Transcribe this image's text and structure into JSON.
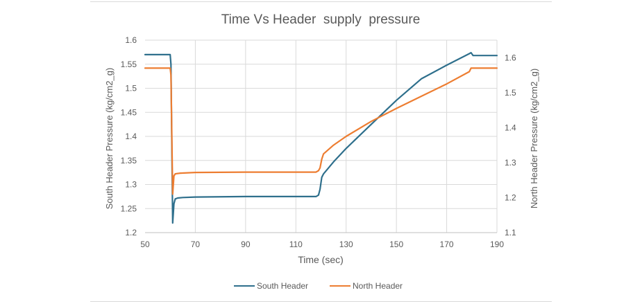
{
  "chart_data": {
    "type": "line",
    "title": "Time Vs Header  supply  pressure",
    "xlabel": "Time (sec)",
    "ylabel_left": "South Header Pressure (kg/cm2_g)",
    "ylabel_right": "North Header Pressure (kg/cm2_g)",
    "xlim": [
      50,
      190
    ],
    "x_ticks": [
      50,
      70,
      90,
      110,
      130,
      150,
      170,
      190
    ],
    "ylim_left": [
      1.2,
      1.6
    ],
    "y_ticks_left": [
      1.2,
      1.25,
      1.3,
      1.35,
      1.4,
      1.45,
      1.5,
      1.55,
      1.6
    ],
    "ylim_right": [
      1.1,
      1.65
    ],
    "y_ticks_right": [
      1.1,
      1.2,
      1.3,
      1.4,
      1.5,
      1.6
    ],
    "grid": true,
    "legend_position": "bottom",
    "series": [
      {
        "name": "South Header",
        "axis": "left",
        "color": "#2e6f8c",
        "points": [
          [
            50,
            1.57
          ],
          [
            60,
            1.57
          ],
          [
            60.3,
            1.55
          ],
          [
            61,
            1.22
          ],
          [
            61.5,
            1.26
          ],
          [
            62,
            1.27
          ],
          [
            63,
            1.272
          ],
          [
            65,
            1.273
          ],
          [
            70,
            1.274
          ],
          [
            90,
            1.275
          ],
          [
            110,
            1.275
          ],
          [
            118,
            1.275
          ],
          [
            119,
            1.278
          ],
          [
            119.6,
            1.29
          ],
          [
            120.3,
            1.315
          ],
          [
            121,
            1.322
          ],
          [
            125,
            1.347
          ],
          [
            130,
            1.375
          ],
          [
            140,
            1.425
          ],
          [
            150,
            1.475
          ],
          [
            160,
            1.52
          ],
          [
            170,
            1.548
          ],
          [
            179,
            1.572
          ],
          [
            179.7,
            1.574
          ],
          [
            180.5,
            1.568
          ],
          [
            190,
            1.568
          ]
        ]
      },
      {
        "name": "North Header",
        "axis": "right",
        "color": "#ed7d31",
        "points": [
          [
            50,
            1.57
          ],
          [
            60,
            1.57
          ],
          [
            60.3,
            1.55
          ],
          [
            61,
            1.21
          ],
          [
            61.5,
            1.262
          ],
          [
            62,
            1.268
          ],
          [
            64,
            1.27
          ],
          [
            70,
            1.272
          ],
          [
            90,
            1.273
          ],
          [
            110,
            1.273
          ],
          [
            118,
            1.273
          ],
          [
            119,
            1.277
          ],
          [
            119.6,
            1.285
          ],
          [
            120.3,
            1.31
          ],
          [
            121,
            1.325
          ],
          [
            125,
            1.35
          ],
          [
            130,
            1.375
          ],
          [
            140,
            1.418
          ],
          [
            150,
            1.455
          ],
          [
            160,
            1.49
          ],
          [
            170,
            1.525
          ],
          [
            179,
            1.56
          ],
          [
            179.7,
            1.57
          ],
          [
            180.5,
            1.57
          ],
          [
            190,
            1.57
          ]
        ]
      }
    ]
  }
}
